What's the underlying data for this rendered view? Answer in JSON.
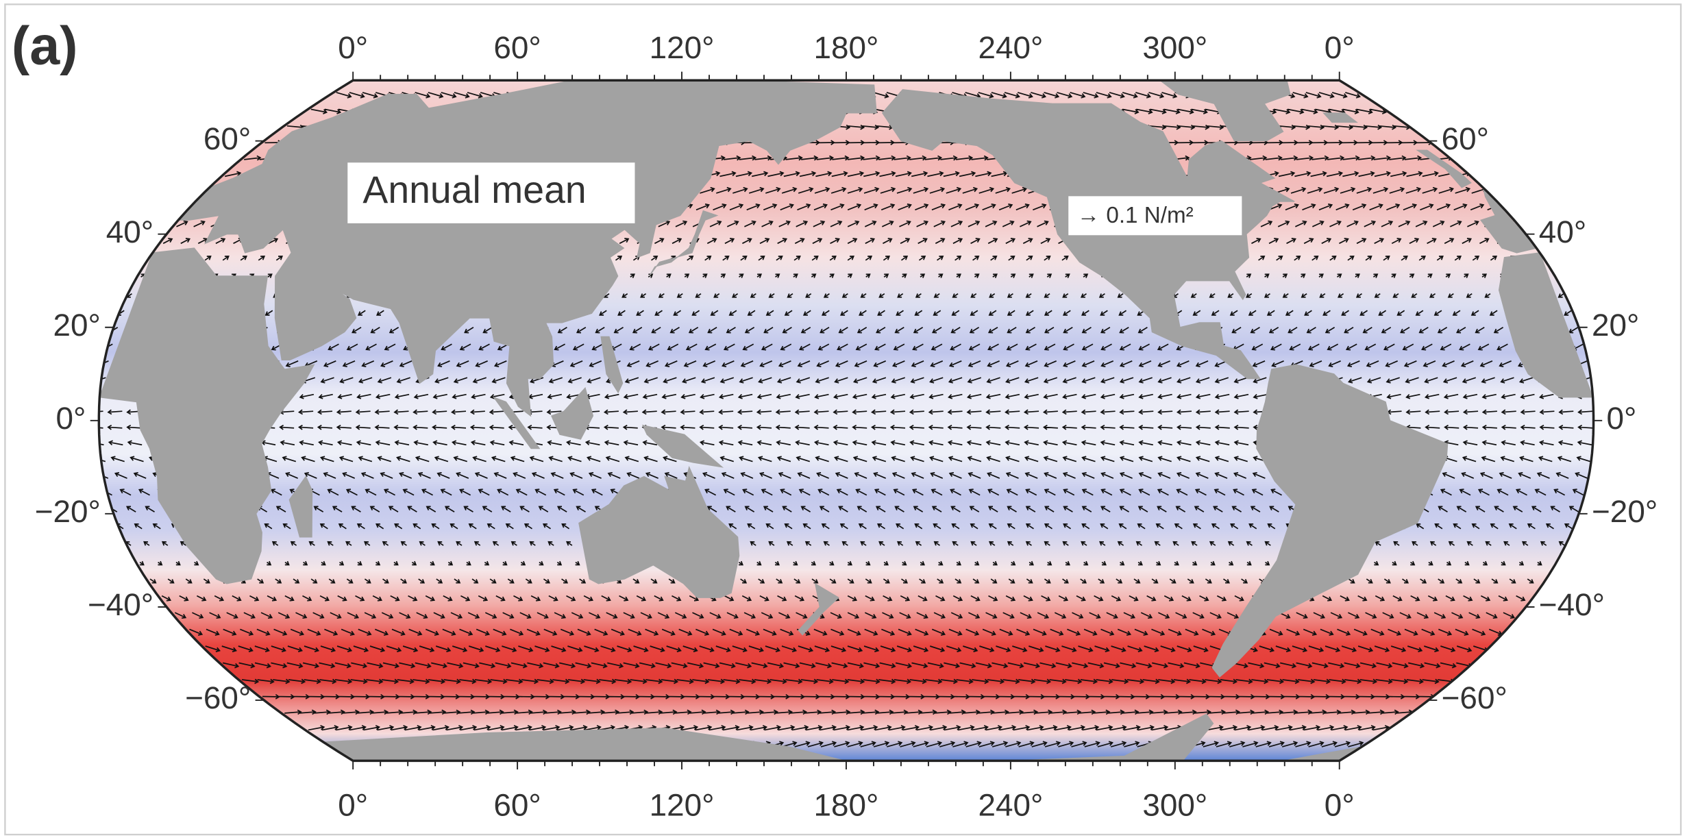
{
  "panel_label": "(a)",
  "title": "Annual mean",
  "reference_vector": "→ 0.1 N/m²",
  "longitude_labels_top": [
    "0°",
    "60°",
    "120°",
    "180°",
    "240°",
    "300°",
    "0°"
  ],
  "longitude_labels_bottom": [
    "0°",
    "60°",
    "120°",
    "180°",
    "240°",
    "300°",
    "0°"
  ],
  "latitude_labels_left": [
    "60°",
    "40°",
    "20°",
    "0°",
    "−20°",
    "−40°",
    "−60°"
  ],
  "latitude_labels_right": [
    "60°",
    "40°",
    "20°",
    "0°",
    "−20°",
    "−40°",
    "−60°"
  ]
}
